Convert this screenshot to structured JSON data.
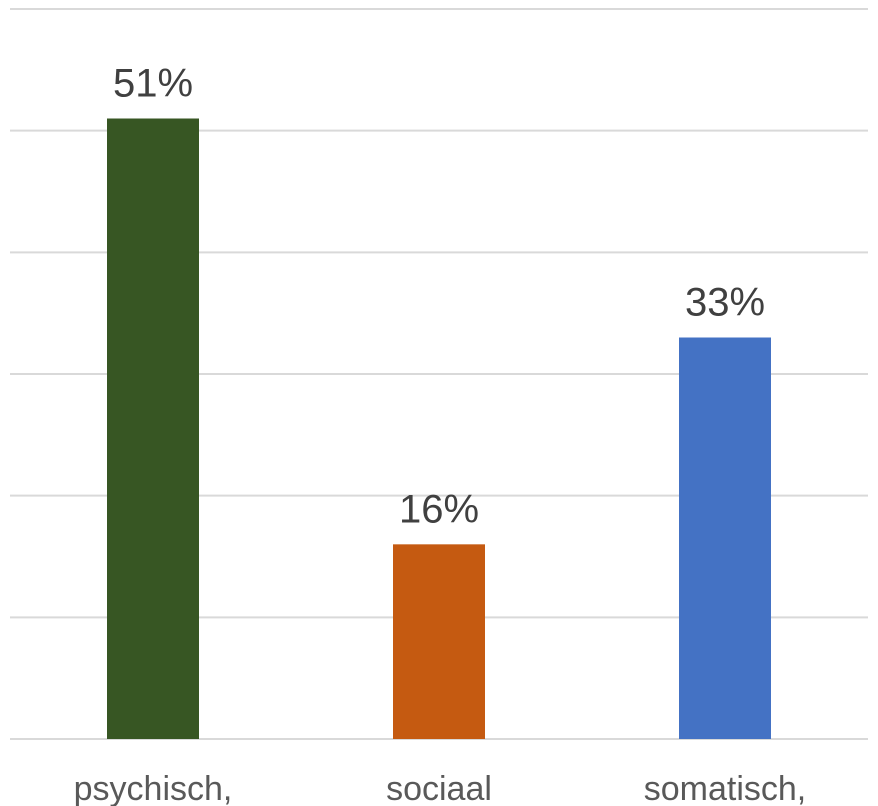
{
  "chart_data": {
    "type": "bar",
    "categories": [
      "psychisch,",
      "sociaal",
      "somatisch,"
    ],
    "values": [
      51,
      16,
      33
    ],
    "data_labels": [
      "51%",
      "16%",
      "33%"
    ],
    "colors": [
      "#375623",
      "#C55A11",
      "#4472C4"
    ],
    "title": "",
    "xlabel": "",
    "ylabel": "",
    "ylim": [
      0,
      60
    ],
    "gridlines": [
      0,
      10,
      20,
      30,
      40,
      50,
      60
    ],
    "grid": true,
    "legend": "none"
  }
}
